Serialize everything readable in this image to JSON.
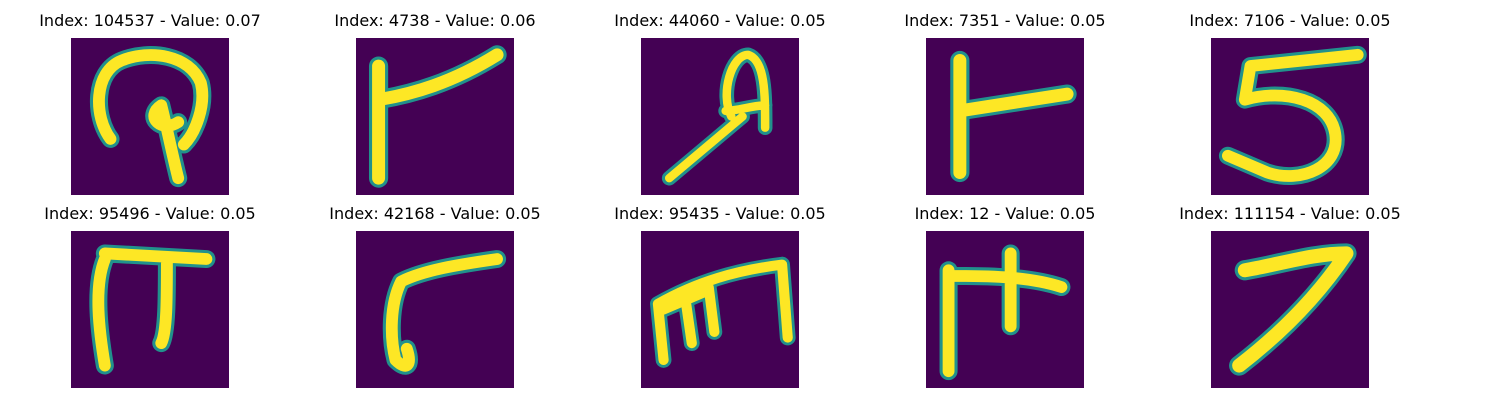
{
  "figure": {
    "background": "#ffffff",
    "panels": [
      {
        "title": "Index: 104537 - Value: 0.07",
        "index": 104537,
        "value": 0.07,
        "glyph": "looped-hook"
      },
      {
        "title": "Index: 4738 - Value: 0.06",
        "index": 4738,
        "value": 0.06,
        "glyph": "stroke-with-diagonal-arm"
      },
      {
        "title": "Index: 44060 - Value: 0.05",
        "index": 44060,
        "value": 0.05,
        "glyph": "loop-on-diagonal-stem"
      },
      {
        "title": "Index: 7351 - Value: 0.05",
        "index": 7351,
        "value": 0.05,
        "glyph": "stroke-with-horizontal-arm"
      },
      {
        "title": "Index: 7106 - Value: 0.05",
        "index": 7106,
        "value": 0.05,
        "glyph": "five-shape"
      },
      {
        "title": "Index: 95496 - Value: 0.05",
        "index": 95496,
        "value": 0.05,
        "glyph": "pi-shape"
      },
      {
        "title": "Index: 42168 - Value: 0.05",
        "index": 42168,
        "value": 0.05,
        "glyph": "hook-under-bar"
      },
      {
        "title": "Index: 95435 - Value: 0.05",
        "index": 95435,
        "value": 0.05,
        "glyph": "m-shape"
      },
      {
        "title": "Index: 12 - Value: 0.05",
        "index": 12,
        "value": 0.05,
        "glyph": "double-stem-bar"
      },
      {
        "title": "Index: 111154 - Value: 0.05",
        "index": 111154,
        "value": 0.05,
        "glyph": "seven-shape"
      }
    ],
    "colormap": {
      "background": "#440154",
      "edge": "#21918c",
      "fill": "#fde725"
    }
  }
}
